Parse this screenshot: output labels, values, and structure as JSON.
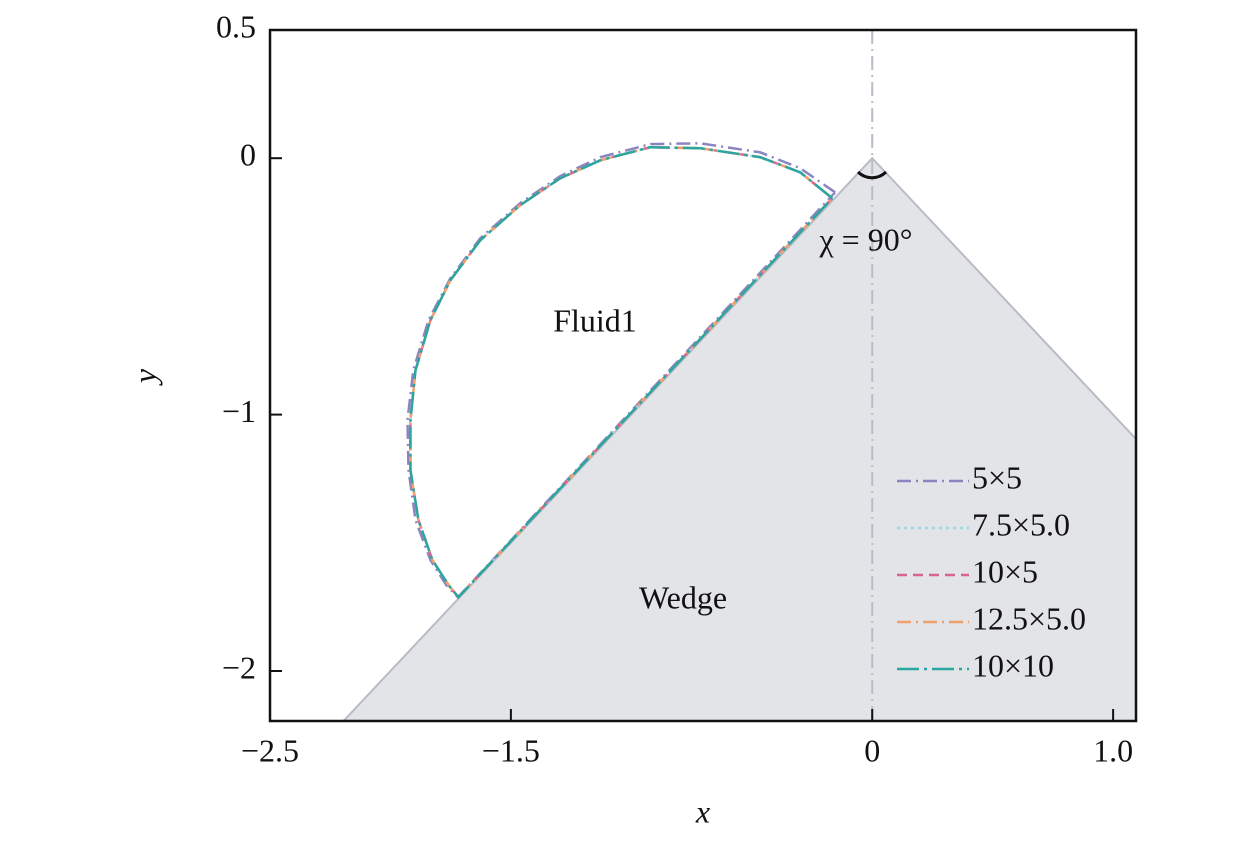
{
  "chart_data": {
    "type": "line",
    "xlabel": "x",
    "ylabel": "y",
    "xlim": [
      -2.5,
      1.095
    ],
    "ylim": [
      -2.195,
      0.5
    ],
    "xticks": [
      {
        "value": -2.5,
        "label": "−2.5"
      },
      {
        "value": -1.5,
        "label": "−1.5"
      },
      0,
      {
        "value": 1,
        "label": "1.0"
      }
    ],
    "yticks": [
      0.5,
      0,
      {
        "value": -1,
        "label": "−1"
      },
      {
        "value": -2,
        "label": "−2"
      }
    ],
    "legend": "lower right",
    "annotations": [
      "Fluid1",
      "Wedge",
      "χ = 90°"
    ],
    "series": [
      {
        "name": "5×5",
        "color": "#8c84c0",
        "linestyle": "dashdot",
        "x": [
          -0.154,
          -0.299,
          -0.465,
          -0.714,
          -0.921,
          -1.129,
          -1.295,
          -1.461,
          -1.627,
          -1.751,
          -1.842,
          -1.905,
          -1.929,
          -1.925,
          -1.896,
          -1.834,
          -1.768,
          -1.72,
          -0.154
        ],
        "values": [
          -0.133,
          -0.039,
          0.023,
          0.058,
          0.055,
          0.004,
          -0.07,
          -0.175,
          -0.312,
          -0.468,
          -0.632,
          -0.827,
          -1.021,
          -1.216,
          -1.411,
          -1.567,
          -1.665,
          -1.712,
          -0.133
        ]
      },
      {
        "name": "7.5×5.0",
        "color": "#9dd8e2",
        "linestyle": "dotted",
        "x": [
          -0.166,
          -0.299,
          -0.465,
          -0.714,
          -0.921,
          -1.129,
          -1.295,
          -1.461,
          -1.627,
          -1.751,
          -1.834,
          -1.896,
          -1.917,
          -1.917,
          -1.884,
          -1.826,
          -1.759,
          -1.718,
          -0.166
        ],
        "values": [
          -0.156,
          -0.055,
          0.004,
          0.039,
          0.043,
          -0.008,
          -0.078,
          -0.183,
          -0.32,
          -0.476,
          -0.632,
          -0.827,
          -1.021,
          -1.216,
          -1.411,
          -1.567,
          -1.665,
          -1.712,
          -0.156
        ]
      },
      {
        "name": "10×5",
        "color": "#d9658f",
        "linestyle": "dashed",
        "x": [
          -0.166,
          -0.299,
          -0.465,
          -0.714,
          -0.921,
          -1.129,
          -1.295,
          -1.461,
          -1.627,
          -1.751,
          -1.834,
          -1.896,
          -1.917,
          -1.917,
          -1.884,
          -1.826,
          -1.759,
          -1.718,
          -0.166
        ],
        "values": [
          -0.156,
          -0.055,
          0.004,
          0.039,
          0.043,
          -0.008,
          -0.078,
          -0.183,
          -0.32,
          -0.476,
          -0.632,
          -0.827,
          -1.021,
          -1.216,
          -1.411,
          -1.567,
          -1.665,
          -1.712,
          -0.156
        ]
      },
      {
        "name": "12.5×5.0",
        "color": "#f0a06a",
        "linestyle": "dashdot",
        "x": [
          -0.166,
          -0.299,
          -0.465,
          -0.714,
          -0.921,
          -1.129,
          -1.295,
          -1.461,
          -1.627,
          -1.751,
          -1.834,
          -1.896,
          -1.917,
          -1.917,
          -1.884,
          -1.826,
          -1.759,
          -1.718,
          -0.166
        ],
        "values": [
          -0.156,
          -0.055,
          0.004,
          0.039,
          0.043,
          -0.008,
          -0.078,
          -0.183,
          -0.32,
          -0.476,
          -0.632,
          -0.827,
          -1.021,
          -1.216,
          -1.411,
          -1.567,
          -1.665,
          -1.712,
          -0.156
        ]
      },
      {
        "name": "10×10",
        "color": "#2aa6a0",
        "linestyle": "longdashdot",
        "x": [
          -0.166,
          -0.299,
          -0.465,
          -0.714,
          -0.921,
          -1.129,
          -1.295,
          -1.461,
          -1.627,
          -1.751,
          -1.834,
          -1.896,
          -1.917,
          -1.917,
          -1.884,
          -1.826,
          -1.759,
          -1.718,
          -0.166
        ],
        "values": [
          -0.156,
          -0.055,
          0.004,
          0.039,
          0.043,
          -0.008,
          -0.078,
          -0.183,
          -0.32,
          -0.476,
          -0.632,
          -0.827,
          -1.021,
          -1.216,
          -1.411,
          -1.567,
          -1.665,
          -1.712,
          -0.156
        ]
      }
    ]
  }
}
